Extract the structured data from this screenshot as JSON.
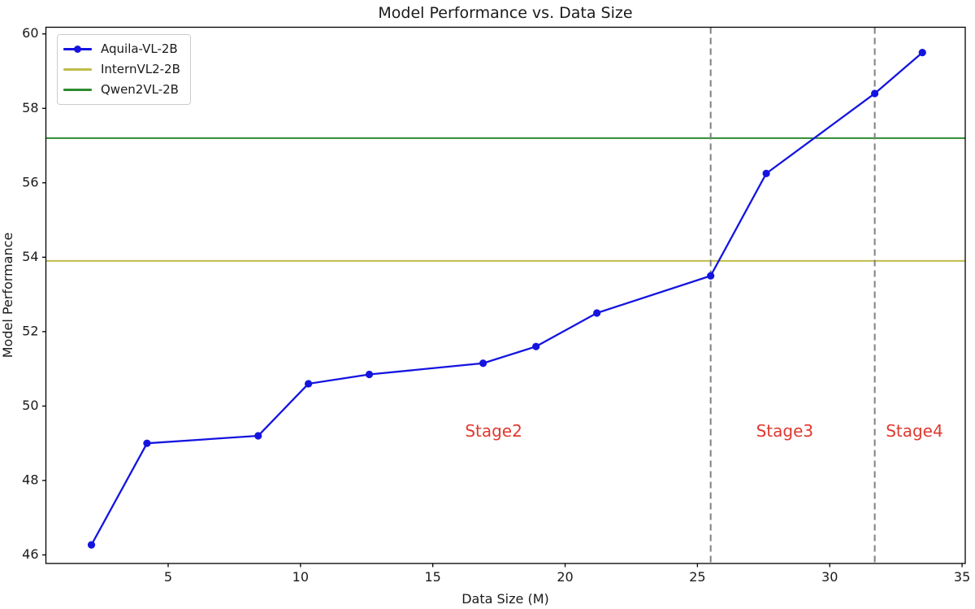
{
  "title": "Model Performance vs. Data Size",
  "colors": {
    "series_blue": "#1414e0",
    "hline_olive": "#bfbd4a",
    "hline_green": "#2f8b2f",
    "vline_gray": "#808080",
    "annotation_red": "#e0392f",
    "axis_black": "#000000",
    "text": "#1a1a1a",
    "legend_border": "#cccccc"
  },
  "chart_data": {
    "type": "line",
    "title": "Model Performance vs. Data Size",
    "xlabel": "Data Size (M)",
    "ylabel": "Model Performance",
    "xlim": [
      0.38,
      35.12
    ],
    "ylim": [
      45.77,
      60.18
    ],
    "xticks": [
      5,
      10,
      15,
      20,
      25,
      30,
      35
    ],
    "yticks": [
      46,
      48,
      50,
      52,
      54,
      56,
      58,
      60
    ],
    "grid": false,
    "legend_position": "upper-left",
    "series": [
      {
        "name": "Aquila-VL-2B",
        "type": "line",
        "marker": "circle",
        "color_key": "series_blue",
        "x": [
          2.1,
          4.2,
          8.4,
          10.3,
          12.6,
          16.9,
          18.9,
          21.2,
          25.5,
          27.6,
          31.7,
          33.5
        ],
        "y": [
          46.27,
          49.0,
          49.2,
          50.6,
          50.85,
          51.15,
          51.6,
          52.5,
          53.5,
          56.25,
          58.4,
          59.5
        ]
      },
      {
        "name": "InternVL2-2B",
        "type": "hline",
        "marker": "none",
        "color_key": "hline_olive",
        "y": 53.9
      },
      {
        "name": "Qwen2VL-2B",
        "type": "hline",
        "marker": "none",
        "color_key": "hline_green",
        "y": 57.2
      }
    ],
    "vlines": [
      {
        "x": 25.5,
        "style": "dashed",
        "color_key": "vline_gray"
      },
      {
        "x": 31.7,
        "style": "dashed",
        "color_key": "vline_gray"
      }
    ],
    "annotations": [
      {
        "text": "Stage2",
        "x": 17.3,
        "y": 49.3,
        "color_key": "annotation_red"
      },
      {
        "text": "Stage3",
        "x": 28.3,
        "y": 49.3,
        "color_key": "annotation_red"
      },
      {
        "text": "Stage4",
        "x": 33.2,
        "y": 49.3,
        "color_key": "annotation_red"
      }
    ]
  }
}
